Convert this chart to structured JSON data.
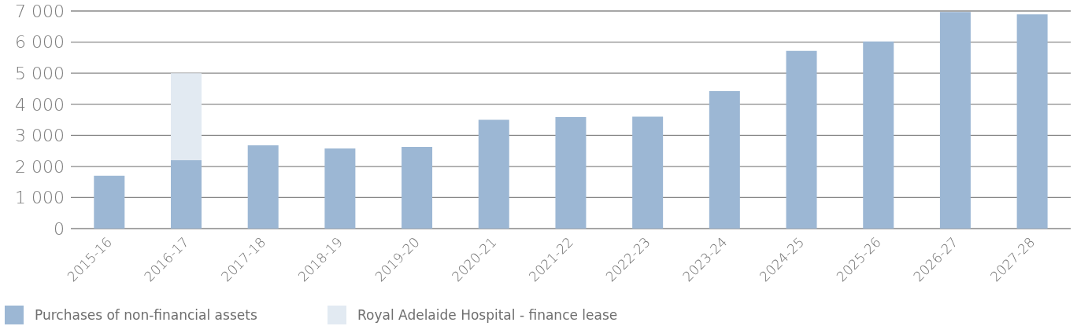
{
  "chart_data": {
    "type": "bar",
    "stacked": true,
    "categories": [
      "2015-16",
      "2016-17",
      "2017-18",
      "2018-19",
      "2019-20",
      "2020-21",
      "2021-22",
      "2022-23",
      "2023-24",
      "2024-25",
      "2025-26",
      "2026-27",
      "2027-28"
    ],
    "series": [
      {
        "name": "Purchases of non-financial assets",
        "color": "#9cb7d4",
        "values": [
          1700,
          2200,
          2680,
          2580,
          2630,
          3500,
          3590,
          3600,
          4420,
          5720,
          6020,
          6970,
          6890
        ]
      },
      {
        "name": "Royal Adelaide Hospital - finance lease",
        "color": "#e2eaf2",
        "values": [
          null,
          2800,
          null,
          null,
          null,
          null,
          null,
          null,
          null,
          null,
          null,
          null,
          null
        ]
      }
    ],
    "ylim": [
      0,
      7000
    ],
    "yticks": [
      {
        "value": 0,
        "label": "0"
      },
      {
        "value": 1000,
        "label": "1 000"
      },
      {
        "value": 2000,
        "label": "2 000"
      },
      {
        "value": 3000,
        "label": "3 000"
      },
      {
        "value": 4000,
        "label": "4 000"
      },
      {
        "value": 5000,
        "label": "5 000"
      },
      {
        "value": 6000,
        "label": "6 000"
      },
      {
        "value": 7000,
        "label": "7 000"
      }
    ],
    "grid": "y",
    "legend": "bottom left"
  }
}
